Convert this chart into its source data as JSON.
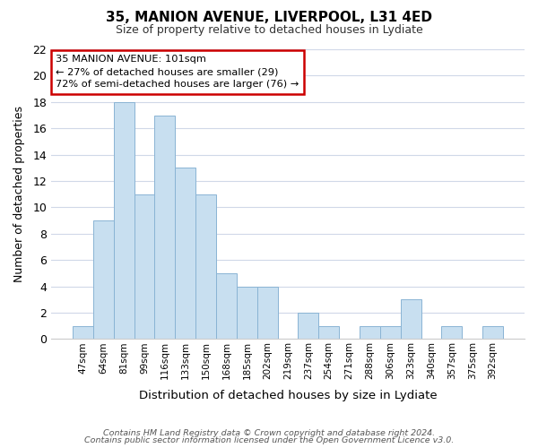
{
  "title": "35, MANION AVENUE, LIVERPOOL, L31 4ED",
  "subtitle": "Size of property relative to detached houses in Lydiate",
  "xlabel": "Distribution of detached houses by size in Lydiate",
  "ylabel": "Number of detached properties",
  "bar_color": "#c8dff0",
  "bar_edge_color": "#8ab4d4",
  "categories": [
    "47sqm",
    "64sqm",
    "81sqm",
    "99sqm",
    "116sqm",
    "133sqm",
    "150sqm",
    "168sqm",
    "185sqm",
    "202sqm",
    "219sqm",
    "237sqm",
    "254sqm",
    "271sqm",
    "288sqm",
    "306sqm",
    "323sqm",
    "340sqm",
    "357sqm",
    "375sqm",
    "392sqm"
  ],
  "values": [
    1,
    9,
    18,
    11,
    17,
    13,
    11,
    5,
    4,
    4,
    0,
    2,
    1,
    0,
    1,
    1,
    3,
    0,
    1,
    0,
    1
  ],
  "ylim": [
    0,
    22
  ],
  "yticks": [
    0,
    2,
    4,
    6,
    8,
    10,
    12,
    14,
    16,
    18,
    20,
    22
  ],
  "annotation_box_text": "35 MANION AVENUE: 101sqm\n← 27% of detached houses are smaller (29)\n72% of semi-detached houses are larger (76) →",
  "annotation_box_color": "#ffffff",
  "annotation_box_edge_color": "#cc0000",
  "footer_line1": "Contains HM Land Registry data © Crown copyright and database right 2024.",
  "footer_line2": "Contains public sector information licensed under the Open Government Licence v3.0.",
  "background_color": "#ffffff",
  "grid_color": "#d0d8e8"
}
